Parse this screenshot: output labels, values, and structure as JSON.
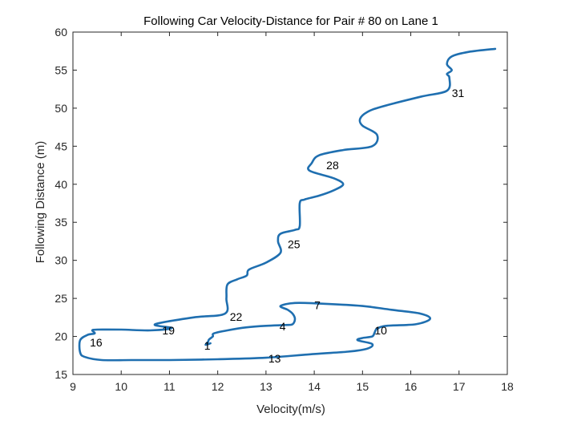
{
  "colors": {
    "line": "#1f6fb0",
    "axis": "#262626",
    "background": "#ffffff"
  },
  "chart_data": {
    "type": "line",
    "title": "Following Car Velocity-Distance for Pair # 80 on Lane 1",
    "xlabel": "Velocity(m/s)",
    "ylabel": "Following Distance (m)",
    "xlim": [
      9,
      18
    ],
    "ylim": [
      15,
      60
    ],
    "xticks": [
      "9",
      "10",
      "11",
      "12",
      "13",
      "14",
      "15",
      "16",
      "17",
      "18"
    ],
    "yticks": [
      "15",
      "20",
      "25",
      "30",
      "35",
      "40",
      "45",
      "50",
      "55",
      "60"
    ],
    "grid": false,
    "series": [
      {
        "name": "trajectory",
        "x": [
          11.85,
          11.75,
          11.8,
          11.82,
          11.9,
          11.92,
          12.2,
          12.6,
          13.0,
          13.4,
          13.55,
          13.6,
          13.55,
          13.45,
          13.3,
          13.6,
          14.2,
          15.0,
          15.6,
          16.2,
          16.4,
          16.1,
          15.5,
          15.3,
          15.25,
          15.2,
          15.0,
          14.9,
          15.2,
          15.1,
          14.7,
          14.0,
          13.0,
          12.0,
          11.0,
          10.2,
          9.6,
          9.25,
          9.15,
          9.15,
          9.3,
          9.45,
          9.4,
          9.5,
          10.0,
          10.6,
          11.05,
          10.7,
          11.5,
          12.15,
          12.18,
          12.2,
          12.4,
          12.6,
          12.65,
          13.0,
          13.3,
          13.25,
          13.3,
          13.6,
          13.7,
          13.7,
          13.8,
          14.1,
          14.4,
          14.6,
          14.4,
          13.9,
          13.95,
          14.1,
          14.6,
          15.2,
          15.3,
          15.0,
          14.95,
          15.1,
          15.4,
          16.2,
          16.75,
          16.8,
          16.75,
          16.85,
          16.75,
          16.85,
          17.2,
          17.75
        ],
        "y": [
          19.1,
          18.9,
          19.3,
          19.6,
          20.0,
          20.4,
          20.8,
          21.2,
          21.4,
          21.5,
          21.6,
          22.3,
          23.0,
          23.5,
          24.0,
          24.4,
          24.3,
          24.0,
          23.5,
          23.0,
          22.3,
          21.6,
          21.4,
          21.0,
          20.5,
          20.0,
          19.8,
          19.5,
          19.0,
          18.4,
          18.0,
          17.7,
          17.2,
          17.0,
          16.9,
          16.9,
          16.9,
          17.3,
          17.9,
          19.5,
          20.2,
          20.4,
          20.8,
          20.9,
          20.9,
          20.8,
          21.1,
          21.6,
          22.5,
          23.0,
          25.0,
          26.8,
          27.5,
          28.0,
          28.8,
          29.7,
          31.0,
          32.5,
          33.5,
          34.0,
          34.5,
          37.5,
          38.0,
          38.5,
          39.2,
          40.0,
          40.8,
          41.8,
          42.8,
          43.8,
          44.5,
          45.0,
          46.5,
          47.7,
          48.6,
          49.5,
          50.2,
          51.5,
          52.3,
          54.0,
          54.5,
          55.0,
          55.8,
          56.8,
          57.4,
          57.8
        ]
      }
    ],
    "annotations": [
      {
        "text": "1",
        "x": 11.72,
        "y": 18.8
      },
      {
        "text": "4",
        "x": 13.28,
        "y": 21.3
      },
      {
        "text": "7",
        "x": 14.0,
        "y": 24.1
      },
      {
        "text": "10",
        "x": 15.25,
        "y": 20.8
      },
      {
        "text": "13",
        "x": 13.05,
        "y": 17.1
      },
      {
        "text": "16",
        "x": 9.35,
        "y": 19.2
      },
      {
        "text": "19",
        "x": 10.85,
        "y": 20.8
      },
      {
        "text": "22",
        "x": 12.25,
        "y": 22.6
      },
      {
        "text": "25",
        "x": 13.45,
        "y": 32.1
      },
      {
        "text": "28",
        "x": 14.25,
        "y": 42.5
      },
      {
        "text": "31",
        "x": 16.85,
        "y": 52.0
      }
    ]
  }
}
